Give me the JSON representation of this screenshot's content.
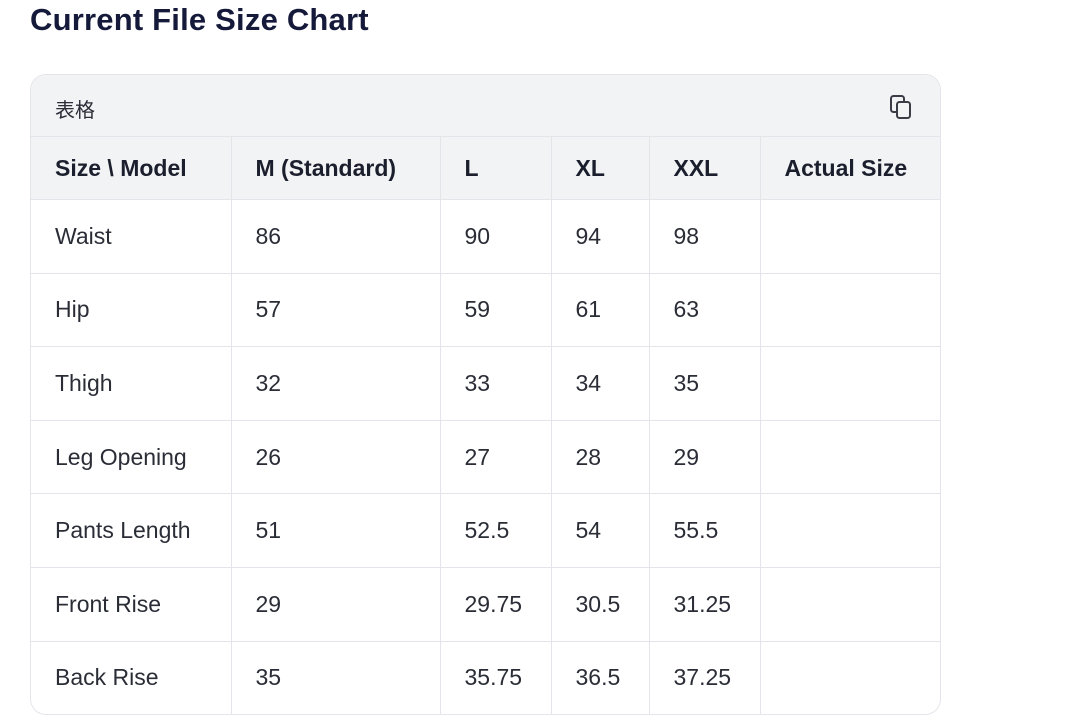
{
  "title": "Current File Size Chart",
  "table": {
    "label": "表格",
    "headers": [
      "Size \\ Model",
      "M (Standard)",
      "L",
      "XL",
      "XXL",
      "Actual Size"
    ],
    "rows": [
      [
        "Waist",
        "86",
        "90",
        "94",
        "98"
      ],
      [
        "Hip",
        "57",
        "59",
        "61",
        "63"
      ],
      [
        "Thigh",
        "32",
        "33",
        "34",
        "35"
      ],
      [
        "Leg Opening",
        "26",
        "27",
        "28",
        "29"
      ],
      [
        "Pants Length",
        "51",
        "52.5",
        "54",
        "55.5"
      ],
      [
        "Front Rise",
        "29",
        "29.75",
        "30.5",
        "31.25"
      ],
      [
        "Back Rise",
        "35",
        "35.75",
        "36.5",
        "37.25"
      ]
    ]
  }
}
